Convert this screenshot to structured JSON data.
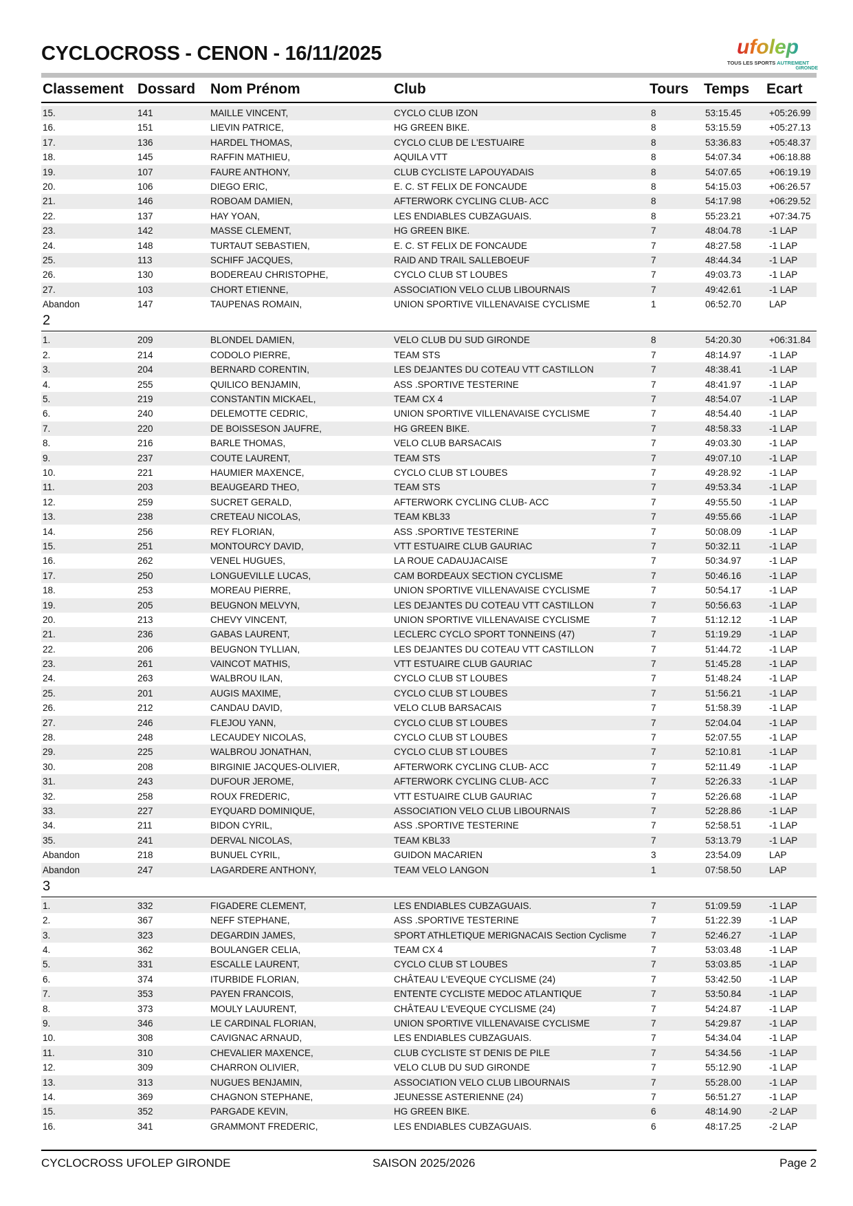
{
  "title": "CYCLOCROSS - CENON - 16/11/2025",
  "logo": {
    "brand": "ufolep",
    "tagline_a": "TOUS LES SPORTS",
    "tagline_b": "AUTREMENT",
    "region": "GIRONDE"
  },
  "columns": [
    "Classement",
    "Dossard",
    "Nom Prénom",
    "Club",
    "Tours",
    "Temps",
    "Ecart"
  ],
  "sections": [
    {
      "label": "",
      "rows": [
        [
          "15.",
          "141",
          "MAILLE VINCENT,",
          "CYCLO CLUB IZON",
          "8",
          "53:15.45",
          "+05:26.99"
        ],
        [
          "16.",
          "151",
          "LIEVIN PATRICE,",
          "HG GREEN BIKE.",
          "8",
          "53:15.59",
          "+05:27.13"
        ],
        [
          "17.",
          "136",
          "HARDEL THOMAS,",
          "CYCLO CLUB DE L'ESTUAIRE",
          "8",
          "53:36.83",
          "+05:48.37"
        ],
        [
          "18.",
          "145",
          "RAFFIN MATHIEU,",
          "AQUILA VTT",
          "8",
          "54:07.34",
          "+06:18.88"
        ],
        [
          "19.",
          "107",
          "FAURE ANTHONY,",
          "CLUB CYCLISTE LAPOUYADAIS",
          "8",
          "54:07.65",
          "+06:19.19"
        ],
        [
          "20.",
          "106",
          "DIEGO ERIC,",
          "E. C. ST FELIX DE FONCAUDE",
          "8",
          "54:15.03",
          "+06:26.57"
        ],
        [
          "21.",
          "146",
          "ROBOAM DAMIEN,",
          "AFTERWORK CYCLING CLUB- ACC",
          "8",
          "54:17.98",
          "+06:29.52"
        ],
        [
          "22.",
          "137",
          "HAY YOAN,",
          "LES ENDIABLES CUBZAGUAIS.",
          "8",
          "55:23.21",
          "+07:34.75"
        ],
        [
          "23.",
          "142",
          "MASSE CLEMENT,",
          "HG GREEN BIKE.",
          "7",
          "48:04.78",
          "-1 LAP"
        ],
        [
          "24.",
          "148",
          "TURTAUT SEBASTIEN,",
          "E. C. ST FELIX DE FONCAUDE",
          "7",
          "48:27.58",
          "-1 LAP"
        ],
        [
          "25.",
          "113",
          "SCHIFF JACQUES,",
          "RAID AND TRAIL SALLEBOEUF",
          "7",
          "48:44.34",
          "-1 LAP"
        ],
        [
          "26.",
          "130",
          "BODEREAU CHRISTOPHE,",
          "CYCLO CLUB ST LOUBES",
          "7",
          "49:03.73",
          "-1 LAP"
        ],
        [
          "27.",
          "103",
          "CHORT ETIENNE,",
          "ASSOCIATION VELO CLUB LIBOURNAIS",
          "7",
          "49:42.61",
          "-1 LAP"
        ],
        [
          "Abandon",
          "147",
          "TAUPENAS ROMAIN,",
          "UNION SPORTIVE VILLENAVAISE CYCLISME",
          "1",
          "06:52.70",
          "LAP"
        ]
      ]
    },
    {
      "label": "2",
      "rows": [
        [
          "1.",
          "209",
          "BLONDEL DAMIEN,",
          "VELO CLUB DU SUD GIRONDE",
          "8",
          "54:20.30",
          "+06:31.84"
        ],
        [
          "2.",
          "214",
          "CODOLO PIERRE,",
          "TEAM STS",
          "7",
          "48:14.97",
          "-1 LAP"
        ],
        [
          "3.",
          "204",
          "BERNARD CORENTIN,",
          "LES DEJANTES DU COTEAU VTT CASTILLON",
          "7",
          "48:38.41",
          "-1 LAP"
        ],
        [
          "4.",
          "255",
          "QUILICO BENJAMIN,",
          "ASS .SPORTIVE TESTERINE",
          "7",
          "48:41.97",
          "-1 LAP"
        ],
        [
          "5.",
          "219",
          "CONSTANTIN MICKAEL,",
          "TEAM CX 4",
          "7",
          "48:54.07",
          "-1 LAP"
        ],
        [
          "6.",
          "240",
          "DELEMOTTE CEDRIC,",
          "UNION SPORTIVE VILLENAVAISE CYCLISME",
          "7",
          "48:54.40",
          "-1 LAP"
        ],
        [
          "7.",
          "220",
          "DE BOISSESON JAUFRE,",
          "HG GREEN BIKE.",
          "7",
          "48:58.33",
          "-1 LAP"
        ],
        [
          "8.",
          "216",
          "BARLE THOMAS,",
          "VELO CLUB BARSACAIS",
          "7",
          "49:03.30",
          "-1 LAP"
        ],
        [
          "9.",
          "237",
          "COUTE LAURENT,",
          "TEAM STS",
          "7",
          "49:07.10",
          "-1 LAP"
        ],
        [
          "10.",
          "221",
          "HAUMIER MAXENCE,",
          "CYCLO CLUB ST LOUBES",
          "7",
          "49:28.92",
          "-1 LAP"
        ],
        [
          "11.",
          "203",
          "BEAUGEARD THEO,",
          "TEAM STS",
          "7",
          "49:53.34",
          "-1 LAP"
        ],
        [
          "12.",
          "259",
          "SUCRET GERALD,",
          "AFTERWORK CYCLING CLUB- ACC",
          "7",
          "49:55.50",
          "-1 LAP"
        ],
        [
          "13.",
          "238",
          "CRETEAU NICOLAS,",
          "TEAM KBL33",
          "7",
          "49:55.66",
          "-1 LAP"
        ],
        [
          "14.",
          "256",
          "REY FLORIAN,",
          "ASS .SPORTIVE TESTERINE",
          "7",
          "50:08.09",
          "-1 LAP"
        ],
        [
          "15.",
          "251",
          "MONTOURCY DAVID,",
          "VTT ESTUAIRE CLUB GAURIAC",
          "7",
          "50:32.11",
          "-1 LAP"
        ],
        [
          "16.",
          "262",
          "VENEL HUGUES,",
          "LA ROUE CADAUJACAISE",
          "7",
          "50:34.97",
          "-1 LAP"
        ],
        [
          "17.",
          "250",
          "LONGUEVILLE LUCAS,",
          "CAM BORDEAUX SECTION CYCLISME",
          "7",
          "50:46.16",
          "-1 LAP"
        ],
        [
          "18.",
          "253",
          "MOREAU PIERRE,",
          "UNION SPORTIVE VILLENAVAISE CYCLISME",
          "7",
          "50:54.17",
          "-1 LAP"
        ],
        [
          "19.",
          "205",
          "BEUGNON MELVYN,",
          "LES DEJANTES DU COTEAU VTT CASTILLON",
          "7",
          "50:56.63",
          "-1 LAP"
        ],
        [
          "20.",
          "213",
          "CHEVY VINCENT,",
          "UNION SPORTIVE VILLENAVAISE CYCLISME",
          "7",
          "51:12.12",
          "-1 LAP"
        ],
        [
          "21.",
          "236",
          "GABAS LAURENT,",
          "LECLERC CYCLO SPORT TONNEINS (47)",
          "7",
          "51:19.29",
          "-1 LAP"
        ],
        [
          "22.",
          "206",
          "BEUGNON TYLLIAN,",
          "LES DEJANTES DU COTEAU VTT CASTILLON",
          "7",
          "51:44.72",
          "-1 LAP"
        ],
        [
          "23.",
          "261",
          "VAINCOT MATHIS,",
          "VTT ESTUAIRE CLUB GAURIAC",
          "7",
          "51:45.28",
          "-1 LAP"
        ],
        [
          "24.",
          "263",
          "WALBROU ILAN,",
          "CYCLO CLUB ST LOUBES",
          "7",
          "51:48.24",
          "-1 LAP"
        ],
        [
          "25.",
          "201",
          "AUGIS MAXIME,",
          "CYCLO CLUB ST LOUBES",
          "7",
          "51:56.21",
          "-1 LAP"
        ],
        [
          "26.",
          "212",
          "CANDAU DAVID,",
          "VELO CLUB BARSACAIS",
          "7",
          "51:58.39",
          "-1 LAP"
        ],
        [
          "27.",
          "246",
          "FLEJOU YANN,",
          "CYCLO CLUB ST LOUBES",
          "7",
          "52:04.04",
          "-1 LAP"
        ],
        [
          "28.",
          "248",
          "LECAUDEY NICOLAS,",
          "CYCLO CLUB ST LOUBES",
          "7",
          "52:07.55",
          "-1 LAP"
        ],
        [
          "29.",
          "225",
          "WALBROU JONATHAN,",
          "CYCLO CLUB ST LOUBES",
          "7",
          "52:10.81",
          "-1 LAP"
        ],
        [
          "30.",
          "208",
          "BIRGINIE JACQUES-OLIVIER,",
          "AFTERWORK CYCLING CLUB- ACC",
          "7",
          "52:11.49",
          "-1 LAP"
        ],
        [
          "31.",
          "243",
          "DUFOUR JEROME,",
          "AFTERWORK CYCLING CLUB- ACC",
          "7",
          "52:26.33",
          "-1 LAP"
        ],
        [
          "32.",
          "258",
          "ROUX FREDERIC,",
          "VTT ESTUAIRE CLUB GAURIAC",
          "7",
          "52:26.68",
          "-1 LAP"
        ],
        [
          "33.",
          "227",
          "EYQUARD DOMINIQUE,",
          "ASSOCIATION VELO CLUB LIBOURNAIS",
          "7",
          "52:28.86",
          "-1 LAP"
        ],
        [
          "34.",
          "211",
          "BIDON CYRIL,",
          "ASS .SPORTIVE TESTERINE",
          "7",
          "52:58.51",
          "-1 LAP"
        ],
        [
          "35.",
          "241",
          "DERVAL NICOLAS,",
          "TEAM KBL33",
          "7",
          "53:13.79",
          "-1 LAP"
        ],
        [
          "Abandon",
          "218",
          "BUNUEL CYRIL,",
          "GUIDON MACARIEN",
          "3",
          "23:54.09",
          "LAP"
        ],
        [
          "Abandon",
          "247",
          "LAGARDERE ANTHONY,",
          "TEAM VELO LANGON",
          "1",
          "07:58.50",
          "LAP"
        ]
      ]
    },
    {
      "label": "3",
      "rows": [
        [
          "1.",
          "332",
          "FIGADERE CLEMENT,",
          "LES ENDIABLES CUBZAGUAIS.",
          "7",
          "51:09.59",
          "-1 LAP"
        ],
        [
          "2.",
          "367",
          "NEFF STEPHANE,",
          "ASS .SPORTIVE TESTERINE",
          "7",
          "51:22.39",
          "-1 LAP"
        ],
        [
          "3.",
          "323",
          "DEGARDIN JAMES,",
          "SPORT ATHLETIQUE MERIGNACAIS Section Cyclisme",
          "7",
          "52:46.27",
          "-1 LAP"
        ],
        [
          "4.",
          "362",
          "BOULANGER CELIA,",
          "TEAM CX 4",
          "7",
          "53:03.48",
          "-1 LAP"
        ],
        [
          "5.",
          "331",
          "ESCALLE LAURENT,",
          "CYCLO CLUB ST LOUBES",
          "7",
          "53:03.85",
          "-1 LAP"
        ],
        [
          "6.",
          "374",
          "ITURBIDE FLORIAN,",
          "CHÂTEAU L'EVEQUE CYCLISME (24)",
          "7",
          "53:42.50",
          "-1 LAP"
        ],
        [
          "7.",
          "353",
          "PAYEN FRANCOIS,",
          "ENTENTE CYCLISTE MEDOC ATLANTIQUE",
          "7",
          "53:50.84",
          "-1 LAP"
        ],
        [
          "8.",
          "373",
          "MOULY LAUURENT,",
          "CHÂTEAU L'EVEQUE CYCLISME (24)",
          "7",
          "54:24.87",
          "-1 LAP"
        ],
        [
          "9.",
          "346",
          "LE CARDINAL FLORIAN,",
          "UNION SPORTIVE VILLENAVAISE CYCLISME",
          "7",
          "54:29.87",
          "-1 LAP"
        ],
        [
          "10.",
          "308",
          "CAVIGNAC ARNAUD,",
          "LES ENDIABLES CUBZAGUAIS.",
          "7",
          "54:34.04",
          "-1 LAP"
        ],
        [
          "11.",
          "310",
          "CHEVALIER MAXENCE,",
          "CLUB CYCLISTE ST DENIS DE PILE",
          "7",
          "54:34.56",
          "-1 LAP"
        ],
        [
          "12.",
          "309",
          "CHARRON OLIVIER,",
          "VELO CLUB DU SUD GIRONDE",
          "7",
          "55:12.90",
          "-1 LAP"
        ],
        [
          "13.",
          "313",
          "NUGUES BENJAMIN,",
          "ASSOCIATION VELO CLUB LIBOURNAIS",
          "7",
          "55:28.00",
          "-1 LAP"
        ],
        [
          "14.",
          "369",
          "CHAGNON STEPHANE,",
          "JEUNESSE ASTERIENNE (24)",
          "7",
          "56:51.27",
          "-1 LAP"
        ],
        [
          "15.",
          "352",
          "PARGADE KEVIN,",
          "HG GREEN BIKE.",
          "6",
          "48:14.90",
          "-2 LAP"
        ],
        [
          "16.",
          "341",
          "GRAMMONT FREDERIC,",
          "LES ENDIABLES CUBZAGUAIS.",
          "6",
          "48:17.25",
          "-2 LAP"
        ]
      ]
    }
  ],
  "footer": {
    "left": "CYCLOCROSS UFOLEP GIRONDE",
    "center": "SAISON 2025/2026",
    "right": "Page 2"
  }
}
